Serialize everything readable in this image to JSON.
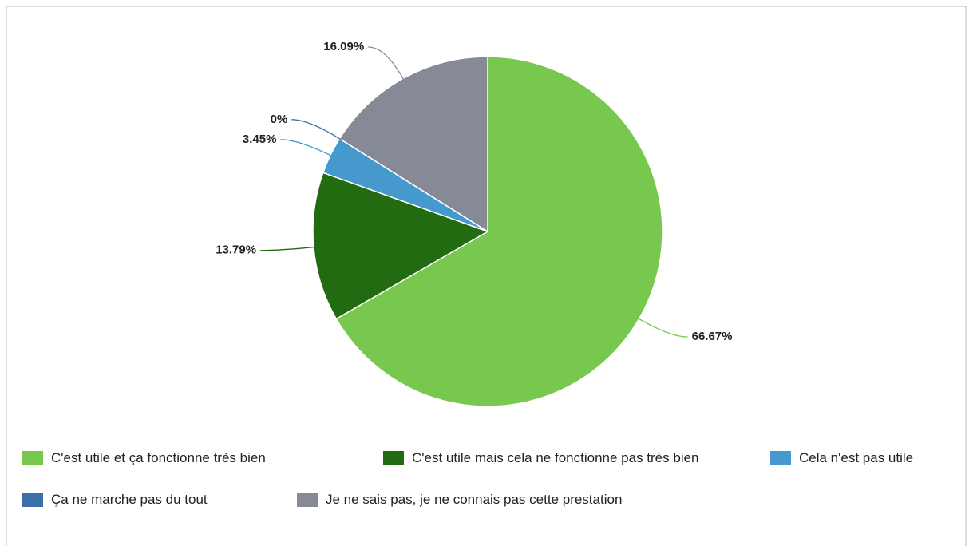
{
  "chart_data": {
    "type": "pie",
    "categories": [
      "C'est utile et ça fonctionne très bien",
      "C'est utile mais cela ne fonctionne pas très bien",
      "Cela n'est pas utile",
      "Ça ne marche pas du tout",
      "Je ne sais pas, je ne connais pas cette prestation"
    ],
    "values": [
      66.67,
      13.79,
      3.45,
      0,
      16.09
    ],
    "value_labels": [
      "66.67%",
      "13.79%",
      "3.45%",
      "0%",
      "16.09%"
    ],
    "colors": [
      "#78c84f",
      "#236b10",
      "#4699cd",
      "#3a6fa8",
      "#868a96"
    ],
    "legend": "bottom"
  }
}
